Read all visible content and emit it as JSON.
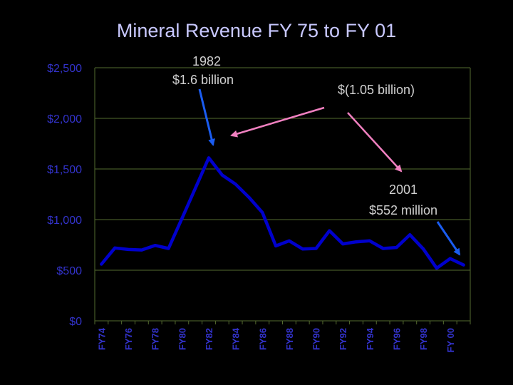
{
  "chart_data": {
    "type": "line",
    "title": "Mineral Revenue FY 75 to FY 01",
    "y_tick_labels": [
      "$0",
      "$500",
      "$1,000",
      "$1,500",
      "$2,000",
      "$2,500"
    ],
    "y_tick_values": [
      0,
      500,
      1000,
      1500,
      2000,
      2500
    ],
    "ylim": [
      0,
      2500
    ],
    "grid": true,
    "x_tick_labels": [
      "FY74",
      "FY76",
      "FY78",
      "FY80",
      "FY82",
      "FY84",
      "FY86",
      "FY88",
      "FY90",
      "FY92",
      "FY94",
      "FY96",
      "FY98",
      "FY 00"
    ],
    "x_tick_index": [
      0,
      2,
      4,
      6,
      8,
      10,
      12,
      14,
      16,
      18,
      20,
      22,
      24,
      26
    ],
    "series": [
      {
        "color": "#0000cc",
        "values": [
          560,
          720,
          705,
          700,
          745,
          715,
          1010,
          1310,
          1610,
          1440,
          1350,
          1220,
          1070,
          740,
          790,
          710,
          715,
          890,
          760,
          780,
          790,
          715,
          725,
          850,
          710,
          520,
          615,
          552
        ]
      }
    ],
    "annotations": [
      {
        "lines": [
          "1982",
          "$1.6 billion"
        ]
      },
      {
        "lines": [
          "$(1.05 billion)"
        ]
      },
      {
        "lines": [
          "2001",
          "$552 million"
        ]
      }
    ],
    "colors": {
      "background": "#000000",
      "grid": "#556b2f",
      "line": "#0000cc",
      "tick_text": "#3333cc",
      "title": "#c8c8ff",
      "annotation_text": "#d0d0d0",
      "arrow_blue": "#1a5cf0",
      "arrow_pink": "#f080c0"
    }
  }
}
